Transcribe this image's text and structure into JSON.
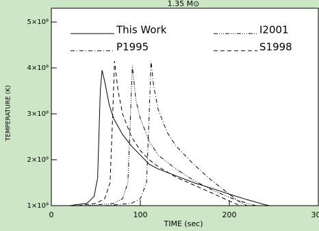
{
  "chart_data": {
    "type": "line",
    "title": "1.35 M⊙",
    "xlabel": "TIME (sec)",
    "ylabel": "TEMPERATURE (K)",
    "xlim": [
      0,
      300
    ],
    "xticks": [
      0,
      100,
      200,
      300
    ],
    "ylim": [
      100000000,
      530000000
    ],
    "yticks": [
      {
        "value": 100000000,
        "label": "1×10⁸"
      },
      {
        "value": 200000000,
        "label": "2×10⁸"
      },
      {
        "value": 300000000,
        "label": "3×10⁸"
      },
      {
        "value": 400000000,
        "label": "4×10⁸"
      },
      {
        "value": 500000000,
        "label": "5×10⁸"
      }
    ],
    "legend": "top",
    "series": [
      {
        "name": "This Work",
        "color": "#000000",
        "dash": "none",
        "x": [
          20,
          40,
          48,
          52,
          55,
          57,
          60,
          65,
          70,
          80,
          90,
          100,
          110,
          120,
          140,
          160,
          180,
          200,
          220,
          240,
          245
        ],
        "values": [
          100000000,
          105000000,
          120000000,
          160000000,
          350000000,
          395000000,
          370000000,
          320000000,
          290000000,
          255000000,
          230000000,
          210000000,
          190000000,
          180000000,
          165000000,
          150000000,
          138000000,
          125000000,
          113000000,
          102000000,
          100000000
        ]
      },
      {
        "name": "I2001",
        "color": "#000000",
        "dash": "6 2 1 2 1 2 1 2",
        "x": [
          40,
          70,
          80,
          86,
          89,
          91,
          95,
          100,
          110,
          120,
          140,
          160,
          180,
          200,
          220,
          230
        ],
        "values": [
          100000000,
          105000000,
          115000000,
          150000000,
          300000000,
          405000000,
          330000000,
          290000000,
          240000000,
          210000000,
          180000000,
          155000000,
          135000000,
          118000000,
          105000000,
          100000000
        ]
      },
      {
        "name": "P1995",
        "color": "#000000",
        "dash": "6 3 1 3",
        "x": [
          60,
          90,
          100,
          107,
          110,
          112,
          115,
          120,
          130,
          140,
          160,
          180,
          200,
          210,
          220
        ],
        "values": [
          100000000,
          105000000,
          115000000,
          150000000,
          300000000,
          415000000,
          360000000,
          310000000,
          260000000,
          230000000,
          190000000,
          155000000,
          125000000,
          110000000,
          100000000
        ]
      },
      {
        "name": "S1998",
        "color": "#000000",
        "dash": "6 4",
        "x": [
          30,
          50,
          60,
          66,
          69,
          71,
          75,
          80,
          90,
          100,
          110,
          120,
          140,
          160,
          180,
          200,
          210
        ],
        "values": [
          100000000,
          105000000,
          115000000,
          150000000,
          300000000,
          415000000,
          350000000,
          300000000,
          250000000,
          220000000,
          200000000,
          185000000,
          162000000,
          145000000,
          128000000,
          110000000,
          102000000
        ]
      }
    ]
  }
}
